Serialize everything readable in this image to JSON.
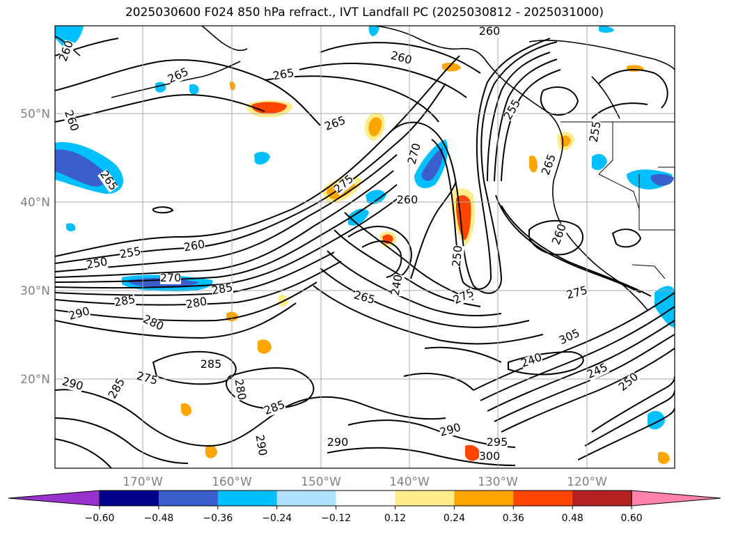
{
  "title": "2025030600 F024 850 hPa refract., IVT Landfall PC (2025030812 - 2025031000)",
  "lat_labels": [
    "50°N",
    "40°N",
    "30°N",
    "20°N"
  ],
  "lon_labels": [
    "170°W",
    "160°W",
    "150°W",
    "140°W",
    "130°W",
    "120°W"
  ],
  "colorbar": {
    "colors": [
      "#9932CC",
      "#00008B",
      "#3A5FCD",
      "#00BFFF",
      "#B0E2FF",
      "#FFFFFF",
      "#FFEC8B",
      "#FFA500",
      "#FF4500",
      "#B22222",
      "#FF82AB"
    ],
    "ticks": [
      "−0.60",
      "−0.48",
      "−0.36",
      "−0.24",
      "−0.12",
      "0.12",
      "0.24",
      "0.36",
      "0.48",
      "0.60"
    ]
  },
  "contour_labels": [
    {
      "text": "260"
    },
    {
      "text": "265"
    },
    {
      "text": "260"
    },
    {
      "text": "260"
    },
    {
      "text": "265"
    },
    {
      "text": "260"
    },
    {
      "text": "265"
    },
    {
      "text": "255"
    },
    {
      "text": "250"
    },
    {
      "text": "260"
    },
    {
      "text": "270"
    },
    {
      "text": "285"
    },
    {
      "text": "280"
    },
    {
      "text": "285"
    },
    {
      "text": "290"
    },
    {
      "text": "280"
    },
    {
      "text": "275"
    },
    {
      "text": "270"
    },
    {
      "text": "260"
    },
    {
      "text": "240"
    },
    {
      "text": "265"
    },
    {
      "text": "250"
    },
    {
      "text": "275"
    },
    {
      "text": "265"
    },
    {
      "text": "255"
    },
    {
      "text": "265"
    },
    {
      "text": "260"
    },
    {
      "text": "255"
    },
    {
      "text": "275"
    },
    {
      "text": "240"
    },
    {
      "text": "245"
    },
    {
      "text": "250"
    },
    {
      "text": "290"
    },
    {
      "text": "285"
    },
    {
      "text": "275"
    },
    {
      "text": "285"
    },
    {
      "text": "290"
    },
    {
      "text": "295"
    },
    {
      "text": "300"
    },
    {
      "text": "290"
    },
    {
      "text": "305"
    },
    {
      "text": "280"
    },
    {
      "text": "285"
    },
    {
      "text": "290"
    }
  ]
}
